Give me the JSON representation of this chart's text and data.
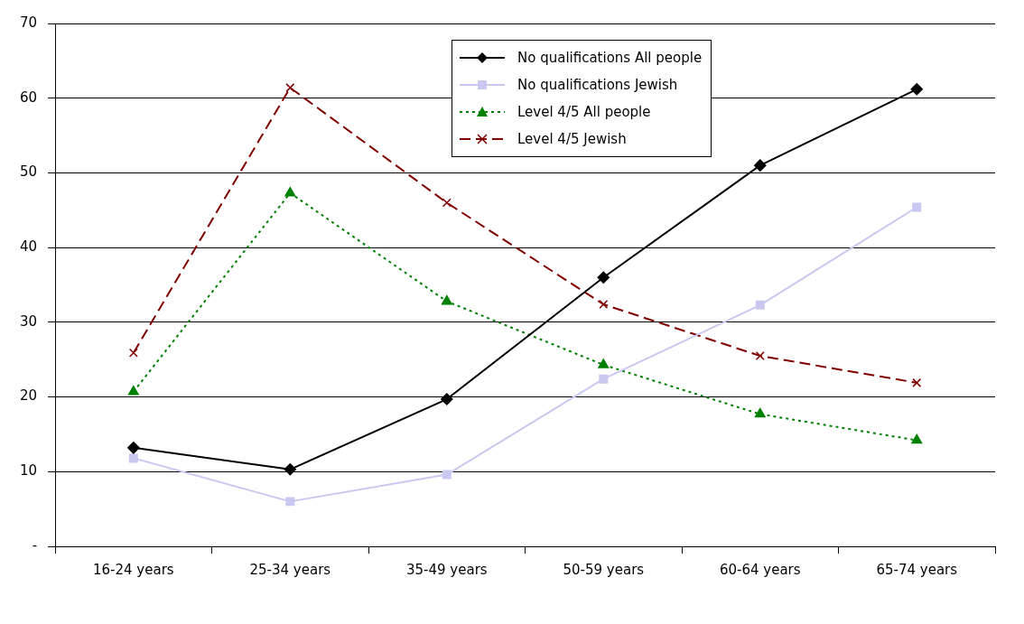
{
  "chart_data": {
    "type": "line",
    "categories": [
      "16-24 years",
      "25-34 years",
      "35-49 years",
      "50-59 years",
      "60-64 years",
      "65-74 years"
    ],
    "series": [
      {
        "name": "No qualifications All people",
        "color": "#000000",
        "marker": "diamond",
        "line_style": "solid",
        "values": [
          13.2,
          10.3,
          19.7,
          36,
          51,
          61.2
        ]
      },
      {
        "name": "No qualifications Jewish",
        "color": "#c8c8f0",
        "marker": "square",
        "line_style": "solid",
        "values": [
          11.8,
          6,
          9.6,
          22.4,
          32.3,
          45.4
        ]
      },
      {
        "name": "Level 4/5 All people",
        "color": "#008000",
        "marker": "triangle",
        "line_style": "dotted",
        "values": [
          20.7,
          47.3,
          32.8,
          24.3,
          17.7,
          14.2
        ]
      },
      {
        "name": "Level 4/5 Jewish",
        "color": "#800000",
        "marker": "cross",
        "line_style": "dashed",
        "values": [
          25.9,
          61.4,
          46,
          32.4,
          25.5,
          21.9
        ]
      }
    ],
    "ylim": [
      0,
      70
    ],
    "yticks": [
      {
        "value": 0,
        "label": "-"
      },
      10,
      20,
      30,
      40,
      50,
      60,
      70
    ],
    "grid": "y",
    "legend": "top"
  }
}
